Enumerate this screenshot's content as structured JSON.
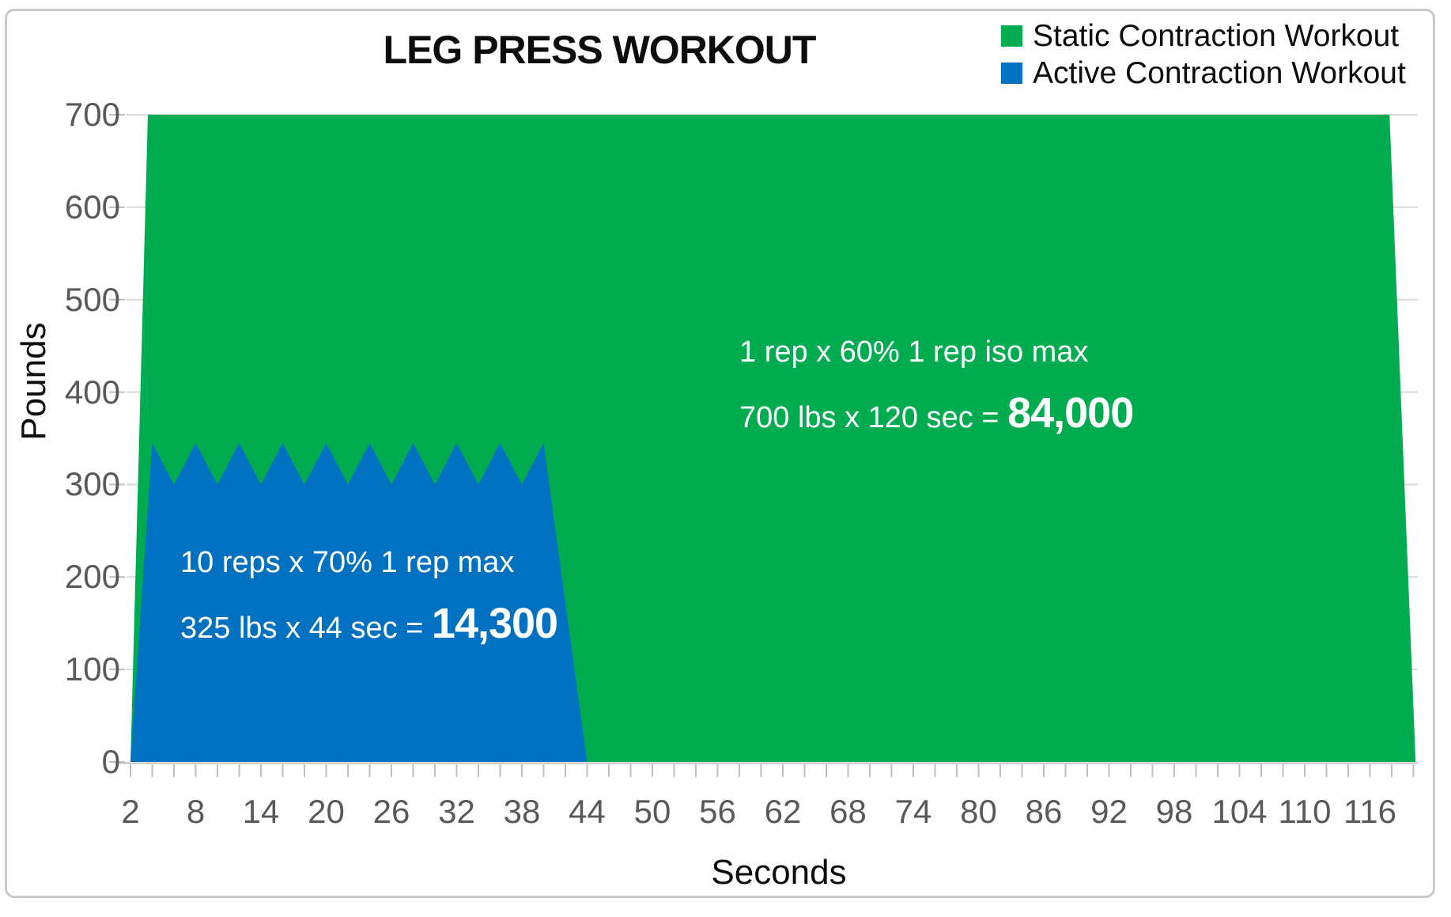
{
  "chart_data": {
    "type": "area",
    "title": "LEG PRESS WORKOUT",
    "xlabel": "Seconds",
    "ylabel": "Pounds",
    "xlim": [
      0,
      120.5
    ],
    "ylim": [
      0,
      700
    ],
    "grid": "horizontal",
    "legend_position": "top-right",
    "x_minor_tick_step": 2,
    "x_tick_labels": [
      2,
      8,
      14,
      20,
      26,
      32,
      38,
      44,
      50,
      56,
      62,
      68,
      74,
      80,
      86,
      92,
      98,
      104,
      110,
      116
    ],
    "y_ticks": [
      0,
      100,
      200,
      300,
      400,
      500,
      600,
      700
    ],
    "series": [
      {
        "name": "Static Contraction Workout",
        "color": "#00AC50",
        "points": [
          [
            2,
            0
          ],
          [
            3.6,
            700
          ],
          [
            117.8,
            700
          ],
          [
            120.2,
            0
          ]
        ],
        "annotation": {
          "line1": "1 rep x 60% 1 rep iso max",
          "formula": "700 lbs x 120 sec = ",
          "result": "84,000"
        }
      },
      {
        "name": "Active Contraction Workout",
        "color": "#0071C1",
        "points": [
          [
            2,
            0
          ],
          [
            4,
            345
          ],
          [
            6,
            300
          ],
          [
            8,
            345
          ],
          [
            10,
            300
          ],
          [
            12,
            345
          ],
          [
            14,
            300
          ],
          [
            16,
            345
          ],
          [
            18,
            300
          ],
          [
            20,
            345
          ],
          [
            22,
            300
          ],
          [
            24,
            345
          ],
          [
            26,
            300
          ],
          [
            28,
            345
          ],
          [
            30,
            300
          ],
          [
            32,
            345
          ],
          [
            34,
            300
          ],
          [
            36,
            345
          ],
          [
            38,
            300
          ],
          [
            40,
            345
          ],
          [
            44,
            0
          ]
        ],
        "annotation": {
          "line1": "10 reps x 70% 1 rep max",
          "formula": "325 lbs x 44 sec = ",
          "result": "14,300"
        }
      }
    ]
  },
  "colors": {
    "grid": "#D9D9D9",
    "axis_line": "#BFBFBF",
    "tick": "#BFBFBF",
    "tick_label": "#595959",
    "text": "#0d0d0d",
    "frame": "#C9C9C9",
    "background": "#FFFFFF",
    "annotation_text": "#FFFFFF"
  }
}
